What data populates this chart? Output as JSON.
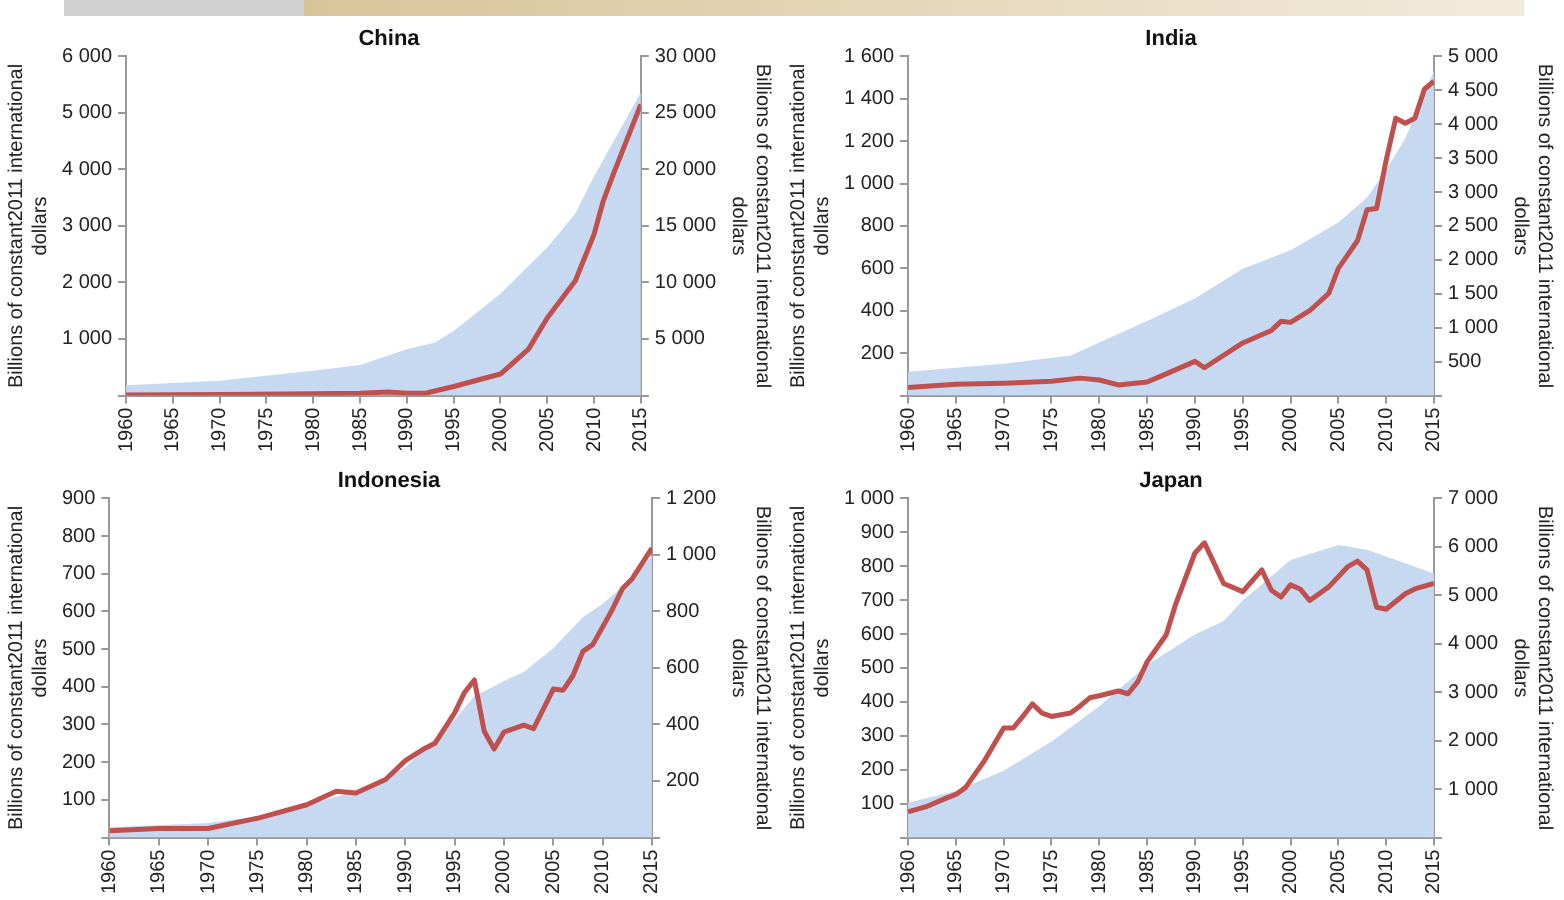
{
  "chart_data": [
    {
      "type": "line",
      "title": "China",
      "ylabel": "Billions of constant2011 international dollars",
      "y2label": "Billions of constant2011 international dollars",
      "legend": false,
      "grid": false,
      "xlim": [
        1960,
        2015
      ],
      "xticks": [
        1960,
        1965,
        1970,
        1975,
        1980,
        1985,
        1990,
        1995,
        2000,
        2005,
        2010,
        2015
      ],
      "ylim": [
        0,
        6000
      ],
      "yticks": [
        {
          "value": 0,
          "label": null
        },
        {
          "value": 1000,
          "label": "1 000"
        },
        {
          "value": 2000,
          "label": "2 000"
        },
        {
          "value": 3000,
          "label": "3 000"
        },
        {
          "value": 4000,
          "label": "4 000"
        },
        {
          "value": 5000,
          "label": "5 000"
        },
        {
          "value": 6000,
          "label": "6 000"
        }
      ],
      "y2lim": [
        0,
        30000
      ],
      "y2ticks": [
        {
          "value": 0,
          "label": null
        },
        {
          "value": 5000,
          "label": "5 000"
        },
        {
          "value": 10000,
          "label": "10 000"
        },
        {
          "value": 15000,
          "label": "15 000"
        },
        {
          "value": 20000,
          "label": "20 000"
        },
        {
          "value": 25000,
          "label": "25 000"
        },
        {
          "value": 30000,
          "label": "30 000"
        }
      ],
      "series": [
        {
          "type": "area",
          "axis": "y2",
          "color": "#c6d9f1",
          "x": [
            1960,
            1970,
            1980,
            1985,
            1990,
            1993,
            1995,
            2000,
            2005,
            2008,
            2010,
            2015
          ],
          "values": [
            900,
            1300,
            2200,
            2700,
            4100,
            4700,
            5700,
            9000,
            13100,
            16100,
            19400,
            26800
          ]
        },
        {
          "type": "line",
          "axis": "y",
          "color": "#c0504d",
          "x": [
            1960,
            1970,
            1980,
            1985,
            1988,
            1990,
            1992,
            1995,
            2000,
            2003,
            2005,
            2008,
            2010,
            2011,
            2012,
            2015
          ],
          "values": [
            10,
            20,
            30,
            40,
            60,
            40,
            40,
            160,
            380,
            820,
            1370,
            2030,
            2850,
            3450,
            3890,
            5150
          ]
        }
      ]
    },
    {
      "type": "line",
      "title": "India",
      "ylabel": "Billions of constant2011 international dollars",
      "y2label": "Billions of constant2011 international dollars",
      "legend": false,
      "grid": false,
      "xlim": [
        1960,
        2015
      ],
      "xticks": [
        1960,
        1965,
        1970,
        1975,
        1980,
        1985,
        1990,
        1995,
        2000,
        2005,
        2010,
        2015
      ],
      "ylim": [
        0,
        1600
      ],
      "yticks": [
        {
          "value": 0,
          "label": null
        },
        {
          "value": 200,
          "label": "200"
        },
        {
          "value": 400,
          "label": "400"
        },
        {
          "value": 600,
          "label": "600"
        },
        {
          "value": 800,
          "label": "800"
        },
        {
          "value": 1000,
          "label": "1 000"
        },
        {
          "value": 1200,
          "label": "1 200"
        },
        {
          "value": 1400,
          "label": "1 400"
        },
        {
          "value": 1600,
          "label": "1 600"
        }
      ],
      "y2lim": [
        0,
        5000
      ],
      "y2ticks": [
        {
          "value": 0,
          "label": null
        },
        {
          "value": 500,
          "label": "500"
        },
        {
          "value": 1000,
          "label": "1 000"
        },
        {
          "value": 1500,
          "label": "1 500"
        },
        {
          "value": 2000,
          "label": "2 000"
        },
        {
          "value": 2500,
          "label": "2 500"
        },
        {
          "value": 3000,
          "label": "3 000"
        },
        {
          "value": 3500,
          "label": "3 500"
        },
        {
          "value": 4000,
          "label": "4 000"
        },
        {
          "value": 4500,
          "label": "4 500"
        },
        {
          "value": 5000,
          "label": "5 000"
        }
      ],
      "series": [
        {
          "type": "area",
          "axis": "y2",
          "color": "#c6d9f1",
          "x": [
            1960,
            1970,
            1977,
            1980,
            1985,
            1990,
            1995,
            2000,
            2005,
            2008,
            2010,
            2012,
            2015
          ],
          "values": [
            350,
            470,
            590,
            780,
            1100,
            1430,
            1870,
            2140,
            2550,
            2920,
            3330,
            3790,
            4790
          ]
        },
        {
          "type": "line",
          "axis": "y",
          "color": "#c0504d",
          "x": [
            1960,
            1965,
            1970,
            1975,
            1978,
            1980,
            1982,
            1985,
            1987,
            1990,
            1991,
            1995,
            1998,
            1999,
            2000,
            2002,
            2004,
            2005,
            2007,
            2008,
            2009,
            2010,
            2011,
            2012,
            2013,
            2014,
            2015
          ],
          "values": [
            38,
            53,
            58,
            67,
            82,
            73,
            50,
            64,
            102,
            161,
            131,
            248,
            307,
            350,
            345,
            400,
            482,
            600,
            730,
            876,
            882,
            1110,
            1308,
            1285,
            1308,
            1445,
            1483
          ]
        }
      ]
    },
    {
      "type": "line",
      "title": "Indonesia",
      "ylabel": "Billions of constant2011 international dollars",
      "y2label": "Billions of constant2011 international dollars",
      "legend": false,
      "grid": false,
      "xlim": [
        1960,
        2015
      ],
      "xticks": [
        1960,
        1965,
        1970,
        1975,
        1980,
        1985,
        1990,
        1995,
        2000,
        2005,
        2010,
        2015
      ],
      "ylim": [
        0,
        900
      ],
      "yticks": [
        {
          "value": 0,
          "label": null
        },
        100,
        200,
        300,
        400,
        500,
        600,
        700,
        800,
        900
      ],
      "y2lim": [
        0,
        1200
      ],
      "y2ticks": [
        {
          "value": 0,
          "label": null
        },
        200,
        400,
        600,
        800,
        {
          "value": 1000,
          "label": "1 000"
        },
        {
          "value": 1200,
          "label": "1 200"
        }
      ],
      "series": [
        {
          "type": "area",
          "axis": "y2",
          "color": "#c6d9f1",
          "x": [
            1960,
            1970,
            1975,
            1980,
            1985,
            1990,
            1995,
            1997,
            1998,
            2000,
            2002,
            2005,
            2008,
            2010,
            2012,
            2015
          ],
          "values": [
            36,
            51,
            75,
            116,
            164,
            248,
            417,
            501,
            518,
            554,
            586,
            670,
            779,
            827,
            887,
            995
          ]
        },
        {
          "type": "line",
          "axis": "y",
          "color": "#c0504d",
          "x": [
            1960,
            1965,
            1970,
            1975,
            1980,
            1983,
            1985,
            1988,
            1990,
            1992,
            1993,
            1995,
            1996,
            1997,
            1998,
            1999,
            2000,
            2002,
            2003,
            2005,
            2006,
            2007,
            2008,
            2009,
            2011,
            2012,
            2013,
            2015
          ],
          "values": [
            18,
            24,
            24,
            51,
            87,
            123,
            118,
            154,
            204,
            237,
            250,
            331,
            385,
            418,
            282,
            235,
            280,
            298,
            289,
            394,
            391,
            430,
            494,
            512,
            606,
            660,
            687,
            768
          ]
        }
      ]
    },
    {
      "type": "line",
      "title": "Japan",
      "ylabel": "Billions of constant2011 international dollars",
      "y2label": "Billions of constant2011 international dollars",
      "legend": false,
      "grid": false,
      "xlim": [
        1960,
        2015
      ],
      "xticks": [
        1960,
        1965,
        1970,
        1975,
        1980,
        1985,
        1990,
        1995,
        2000,
        2005,
        2010,
        2015
      ],
      "ylim": [
        0,
        1000
      ],
      "yticks": [
        {
          "value": 0,
          "label": null
        },
        100,
        200,
        300,
        400,
        500,
        600,
        700,
        800,
        900,
        {
          "value": 1000,
          "label": "1 000"
        }
      ],
      "y2lim": [
        0,
        7000
      ],
      "y2ticks": [
        {
          "value": 0,
          "label": null
        },
        {
          "value": 1000,
          "label": "1 000"
        },
        {
          "value": 2000,
          "label": "2 000"
        },
        {
          "value": 3000,
          "label": "3 000"
        },
        {
          "value": 4000,
          "label": "4 000"
        },
        {
          "value": 5000,
          "label": "5 000"
        },
        {
          "value": 6000,
          "label": "6 000"
        },
        {
          "value": 7000,
          "label": "7 000"
        }
      ],
      "series": [
        {
          "type": "area",
          "axis": "y2",
          "color": "#c6d9f1",
          "x": [
            1960,
            1965,
            1970,
            1975,
            1980,
            1985,
            1990,
            1993,
            1995,
            2000,
            2005,
            2008,
            2010,
            2015
          ],
          "values": [
            720,
            960,
            1380,
            1980,
            2710,
            3560,
            4190,
            4470,
            4890,
            5730,
            6040,
            5940,
            5800,
            5450
          ]
        },
        {
          "type": "line",
          "axis": "y",
          "color": "#c0504d",
          "x": [
            1960,
            1962,
            1964,
            1965,
            1966,
            1968,
            1970,
            1971,
            1972,
            1973,
            1974,
            1975,
            1977,
            1978,
            1979,
            1980,
            1982,
            1983,
            1984,
            1985,
            1987,
            1988,
            1990,
            1991,
            1992,
            1993,
            1995,
            1997,
            1998,
            1999,
            2000,
            2001,
            2002,
            2004,
            2006,
            2007,
            2008,
            2009,
            2010,
            2012,
            2013,
            2015
          ],
          "values": [
            76,
            92,
            116,
            127,
            147,
            227,
            323,
            323,
            357,
            394,
            367,
            357,
            367,
            388,
            412,
            418,
            432,
            424,
            458,
            518,
            598,
            689,
            839,
            869,
            809,
            749,
            725,
            789,
            729,
            709,
            745,
            733,
            699,
            739,
            799,
            815,
            789,
            679,
            673,
            719,
            733,
            749
          ]
        }
      ]
    }
  ]
}
